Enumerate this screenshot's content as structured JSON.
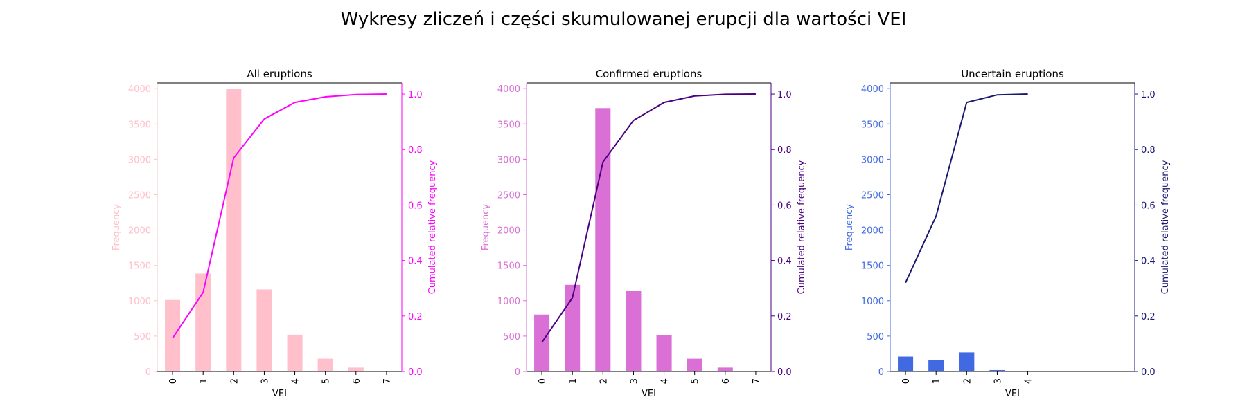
{
  "figure": {
    "suptitle": "Wykresy zliczeń i części skumulowanej erupcji dla wartości VEI"
  },
  "chart_data": [
    {
      "type": "bar",
      "title": "All eruptions",
      "xlabel": "VEI",
      "ylabel": "Frequency",
      "y2label": "Cumulated relative frequency",
      "categories": [
        "0",
        "1",
        "2",
        "3",
        "4",
        "5",
        "6",
        "7"
      ],
      "ylim": [
        0,
        4080
      ],
      "yticks": [
        0,
        500,
        1000,
        1500,
        2000,
        2500,
        3000,
        3500,
        4000
      ],
      "y2lim": [
        0,
        1.04
      ],
      "y2ticks": [
        0.0,
        0.2,
        0.4,
        0.6,
        0.8,
        1.0
      ],
      "bar_color": "#ffc0cb",
      "line_color": "#ff00ff",
      "series": [
        {
          "kind": "bar",
          "axis": "left",
          "values": [
            1010,
            1385,
            3995,
            1160,
            520,
            180,
            55,
            8
          ]
        },
        {
          "kind": "line",
          "axis": "right",
          "values": [
            0.12,
            0.285,
            0.77,
            0.91,
            0.97,
            0.99,
            0.998,
            1.0
          ]
        }
      ]
    },
    {
      "type": "bar",
      "title": "Confirmed eruptions",
      "xlabel": "VEI",
      "ylabel": "Frequency",
      "y2label": "Cumulated relative frequency",
      "categories": [
        "0",
        "1",
        "2",
        "3",
        "4",
        "5",
        "6",
        "7"
      ],
      "ylim": [
        0,
        4080
      ],
      "yticks": [
        0,
        500,
        1000,
        1500,
        2000,
        2500,
        3000,
        3500,
        4000
      ],
      "y2lim": [
        0,
        1.04
      ],
      "y2ticks": [
        0.0,
        0.2,
        0.4,
        0.6,
        0.8,
        1.0
      ],
      "bar_color": "#da70d6",
      "line_color": "#4b0082",
      "series": [
        {
          "kind": "bar",
          "axis": "left",
          "values": [
            805,
            1225,
            3725,
            1140,
            515,
            180,
            55,
            8
          ]
        },
        {
          "kind": "line",
          "axis": "right",
          "values": [
            0.105,
            0.265,
            0.755,
            0.905,
            0.97,
            0.993,
            0.999,
            1.0
          ]
        }
      ]
    },
    {
      "type": "bar",
      "title": "Uncertain eruptions",
      "xlabel": "VEI",
      "ylabel": "Frequency",
      "y2label": "Cumulated relative frequency",
      "categories": [
        "0",
        "1",
        "2",
        "3",
        "4"
      ],
      "extra_slots": 3,
      "ylim": [
        0,
        4080
      ],
      "yticks": [
        0,
        500,
        1000,
        1500,
        2000,
        2500,
        3000,
        3500,
        4000
      ],
      "y2lim": [
        0,
        1.04
      ],
      "y2ticks": [
        0.0,
        0.2,
        0.4,
        0.6,
        0.8,
        1.0
      ],
      "bar_color": "#4169e1",
      "line_color": "#191970",
      "series": [
        {
          "kind": "bar",
          "axis": "left",
          "values": [
            210,
            160,
            270,
            20,
            3
          ]
        },
        {
          "kind": "line",
          "axis": "right",
          "values": [
            0.32,
            0.56,
            0.97,
            0.997,
            1.0
          ]
        }
      ]
    }
  ]
}
